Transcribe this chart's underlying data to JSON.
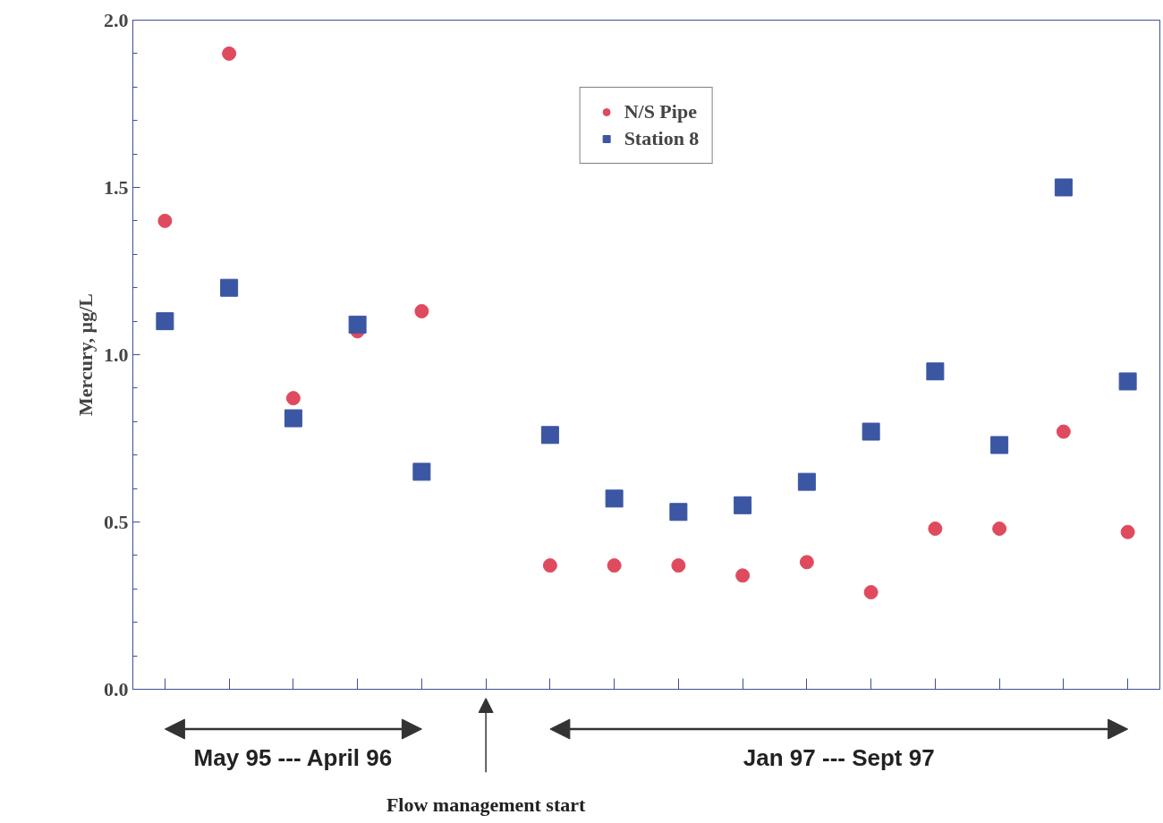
{
  "chart_data": {
    "type": "scatter",
    "ylabel": "Mercury, µg/L",
    "categories": [
      null,
      null,
      null,
      null,
      null,
      null,
      null,
      null,
      null,
      null,
      null,
      null,
      null,
      null,
      null,
      null
    ],
    "series": [
      {
        "name": "N/S Pipe",
        "color": "#e04a5e",
        "marker": "circle",
        "values": [
          1.4,
          1.9,
          0.87,
          1.07,
          1.13,
          null,
          0.37,
          0.37,
          0.37,
          0.34,
          0.38,
          0.29,
          0.48,
          0.48,
          0.77,
          0.47
        ]
      },
      {
        "name": "Station 8",
        "color": "#3b56a3",
        "marker": "square",
        "values": [
          1.1,
          1.2,
          0.81,
          1.09,
          0.65,
          null,
          0.76,
          0.57,
          0.53,
          0.55,
          0.62,
          0.77,
          0.95,
          0.73,
          1.5,
          0.92
        ]
      }
    ],
    "ylim": [
      0,
      2
    ],
    "yticks": [
      {
        "value": 0,
        "label": "0.0"
      },
      {
        "value": 0.5,
        "label": "0.5"
      },
      {
        "value": 1,
        "label": "1.0"
      },
      {
        "value": 1.5,
        "label": "1.5"
      },
      {
        "value": 2,
        "label": "2.0"
      }
    ],
    "annotations": [
      "May 95 --- April 96",
      "Jan 97 --- Sept 97",
      "Flow management start"
    ],
    "legend": "top",
    "grid": false
  }
}
